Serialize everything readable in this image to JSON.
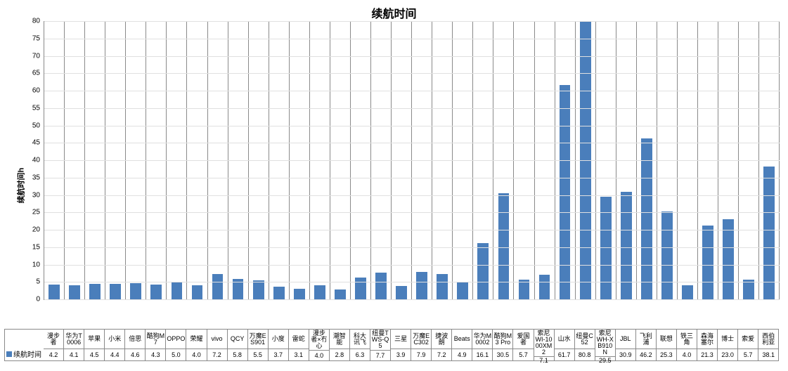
{
  "chart": {
    "type": "bar",
    "title": "续航时间",
    "title_fontsize": 16,
    "ylabel": "续航时间h",
    "label_fontsize": 11,
    "legend_label": "续航时间",
    "ylim": [
      0,
      80
    ],
    "ytick_step": 5,
    "yticks": [
      0,
      5,
      10,
      15,
      20,
      25,
      30,
      35,
      40,
      45,
      50,
      55,
      60,
      65,
      70,
      75,
      80
    ],
    "bar_color": "#4a7ebb",
    "grid_color": "#e0e0e0",
    "axis_color": "#8a8a8a",
    "background_color": "#ffffff",
    "bar_width_ratio": 0.56,
    "categories": [
      "漫步者",
      "华为T0006",
      "苹果",
      "小米",
      "倍思",
      "酷狗M7",
      "OPPO",
      "荣耀",
      "vivo",
      "QCY",
      "万魔ES901",
      "小度",
      "雷蛇",
      "漫步者×冇心",
      "潮智能",
      "科大讯飞",
      "纽曼TWS-Q5",
      "三星",
      "万魔EC302",
      "捷波朗",
      "Beats",
      "华为M0002",
      "酷狗M3 Pro",
      "爱国者",
      "索尼WI-1000XM2",
      "山水",
      "纽曼C52",
      "索尼WH-XB910N",
      "JBL",
      "飞利浦",
      "联想",
      "铁三角",
      "森海塞尔",
      "博士",
      "索爱",
      "西伯利亚"
    ],
    "values": [
      4.2,
      4.1,
      4.5,
      4.4,
      4.6,
      4.3,
      5.0,
      4.0,
      7.2,
      5.8,
      5.5,
      3.7,
      3.1,
      4.0,
      2.8,
      6.3,
      7.7,
      3.9,
      7.9,
      7.2,
      4.9,
      16.1,
      30.5,
      5.7,
      7.1,
      61.7,
      80.8,
      29.5,
      30.9,
      46.2,
      25.3,
      4.0,
      21.3,
      23.0,
      5.7,
      38.1
    ]
  }
}
